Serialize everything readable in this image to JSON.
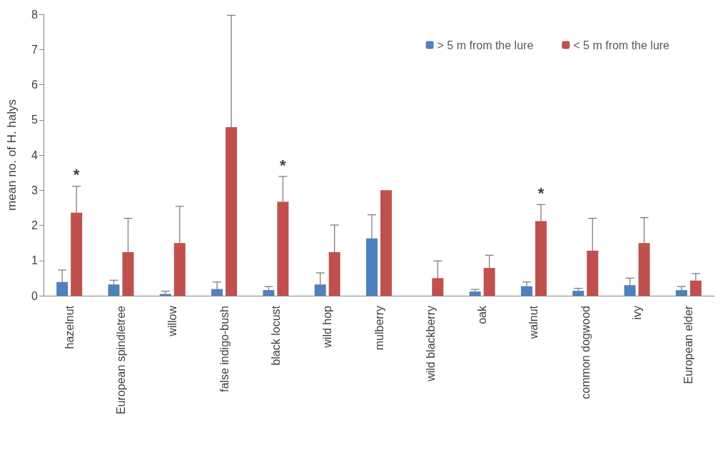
{
  "chart_data": {
    "type": "bar",
    "ylabel": "mean no. of H. halys",
    "categories": [
      "hazelnut",
      "European spindletree",
      "willow",
      "false indigo-bush",
      "black locust",
      "wild hop",
      "mulberry",
      "wild blackberry",
      "oak",
      "walnut",
      "common dogwood",
      "ivy",
      "European elder"
    ],
    "series": [
      {
        "name": "> 5 m from the lure",
        "color": "#4f81bd",
        "values": [
          0.39,
          0.32,
          0.05,
          0.19,
          0.16,
          0.32,
          1.63,
          0,
          0.12,
          0.27,
          0.14,
          0.3,
          0.16
        ],
        "errors": [
          [
            0.39,
            0.73
          ],
          [
            0.32,
            0.44
          ],
          [
            0.05,
            0.13
          ],
          [
            0.19,
            0.39
          ],
          [
            0.16,
            0.26
          ],
          [
            0.32,
            0.65
          ],
          [
            1.63,
            2.3
          ],
          null,
          [
            0.12,
            0.18
          ],
          [
            0.27,
            0.39
          ],
          [
            0.14,
            0.21
          ],
          [
            0.3,
            0.5
          ],
          [
            0.16,
            0.26
          ]
        ]
      },
      {
        "name": "< 5 m from the lure",
        "color": "#c0504d",
        "values": [
          2.36,
          1.24,
          1.5,
          4.79,
          2.67,
          1.24,
          3.0,
          0.5,
          0.79,
          2.12,
          1.28,
          1.5,
          0.43
        ],
        "errors": [
          [
            2.36,
            3.11
          ],
          [
            1.24,
            2.2
          ],
          [
            1.5,
            2.54
          ],
          [
            4.79,
            7.97
          ],
          [
            2.67,
            3.39
          ],
          [
            1.24,
            2.01
          ],
          null,
          [
            0.5,
            0.99
          ],
          [
            0.79,
            1.15
          ],
          [
            2.12,
            2.59
          ],
          [
            1.28,
            2.2
          ],
          [
            1.5,
            2.22
          ],
          [
            0.43,
            0.63
          ]
        ]
      }
    ],
    "ylim": [
      0,
      8
    ],
    "yticks": [
      0,
      1,
      2,
      3,
      4,
      5,
      6,
      7,
      8
    ],
    "grid": false,
    "legend": "top right",
    "annotations": [
      {
        "text": "*",
        "x": "hazelnut",
        "y": 3.11
      },
      {
        "text": "*",
        "x": "black locust",
        "y": 3.39
      },
      {
        "text": "*",
        "x": "walnut",
        "y": 2.59
      }
    ]
  }
}
